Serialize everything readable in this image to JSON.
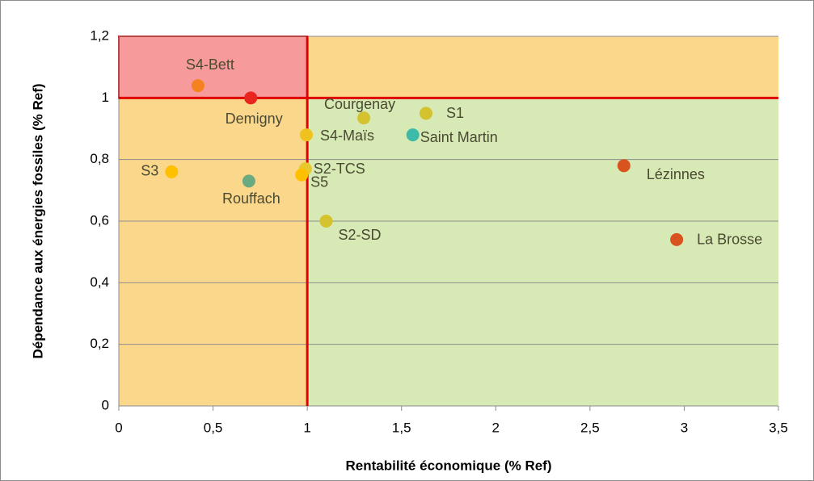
{
  "chart_data": {
    "type": "scatter",
    "x_label": "Rentabilité économique (% Ref)",
    "y_label": "Dépendance aux énergies fossiles (% Ref)",
    "xlim": [
      0,
      3.5
    ],
    "ylim": [
      0,
      1.2
    ],
    "xticks": [
      0,
      {
        "value": 0.5,
        "label": "0,5"
      },
      1,
      {
        "value": 1.5,
        "label": "1,5"
      },
      2,
      {
        "value": 2.5,
        "label": "2,5"
      },
      3,
      {
        "value": 3.5,
        "label": "3,5"
      }
    ],
    "yticks": [
      0,
      {
        "value": 0.2,
        "label": "0,2"
      },
      {
        "value": 0.4,
        "label": "0,4"
      },
      {
        "value": 0.6,
        "label": "0,6"
      },
      {
        "value": 0.8,
        "label": "0,8"
      },
      1,
      {
        "value": 1.2,
        "label": "1,2"
      }
    ],
    "grid": true,
    "reference_lines": {
      "x": 1,
      "y": 1
    },
    "points": [
      {
        "label": "S4-Bett",
        "x": 0.42,
        "y": 1.04,
        "color": "#f5821f"
      },
      {
        "label": "Demigny",
        "x": 0.7,
        "y": 1.0,
        "color": "#e8251f"
      },
      {
        "label": "Courgenay",
        "x": 1.3,
        "y": 0.935,
        "color": "#d4c22e"
      },
      {
        "label": "S1",
        "x": 1.63,
        "y": 0.95,
        "color": "#d4c22e"
      },
      {
        "label": "Saint Martin",
        "x": 1.56,
        "y": 0.88,
        "color": "#3dbaa8"
      },
      {
        "label": "S4-Maïs",
        "x": 0.995,
        "y": 0.88,
        "color": "#f0c21e"
      },
      {
        "label": "S3",
        "x": 0.28,
        "y": 0.76,
        "color": "#ffc000"
      },
      {
        "label": "Rouffach",
        "x": 0.69,
        "y": 0.73,
        "color": "#6aaa80"
      },
      {
        "label": "S2-TCS",
        "x": 0.99,
        "y": 0.77,
        "color": "#e8c82a"
      },
      {
        "label": "S5",
        "x": 0.97,
        "y": 0.75,
        "color": "#ffc000"
      },
      {
        "label": "S2-SD",
        "x": 1.1,
        "y": 0.6,
        "color": "#d4c22e"
      },
      {
        "label": "Lézinnes",
        "x": 2.68,
        "y": 0.78,
        "color": "#d9531e"
      },
      {
        "label": "La Brosse",
        "x": 2.96,
        "y": 0.54,
        "color": "#d9531e"
      }
    ]
  }
}
